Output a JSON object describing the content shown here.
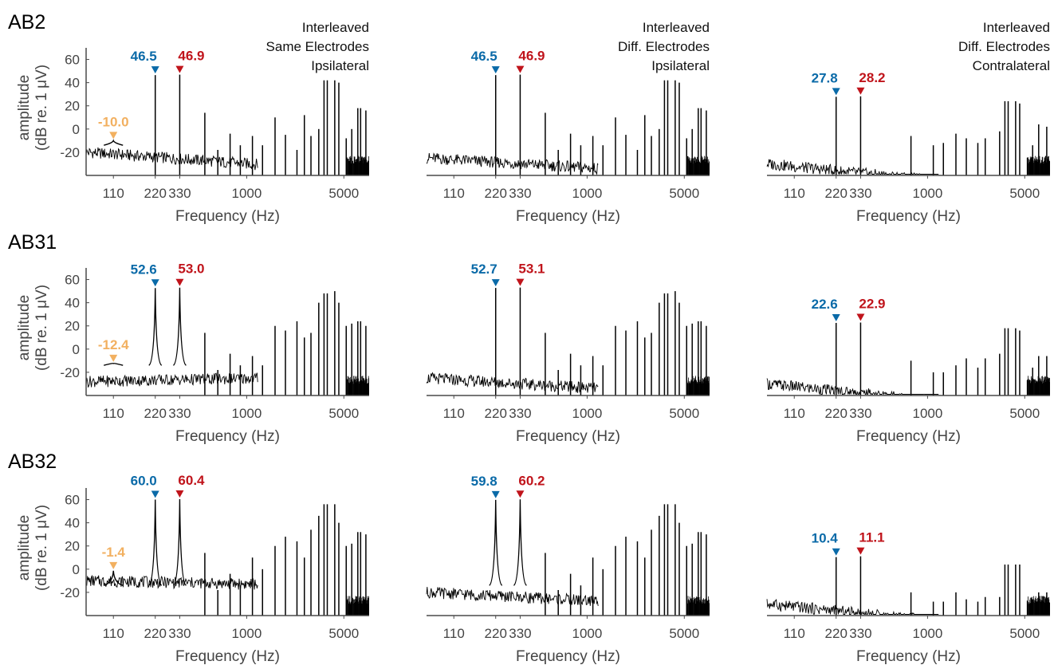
{
  "colors": {
    "blue": "#0a6aa8",
    "red": "#c0141b",
    "orange": "#f2b060",
    "trace": "#000000",
    "axis": "#4a4a4a",
    "text": "#444444"
  },
  "rows": [
    {
      "label": "AB2"
    },
    {
      "label": "AB31"
    },
    {
      "label": "AB32"
    }
  ],
  "shared": {
    "ylabel_line1": "amplitude",
    "ylabel_line2": "(dB re. 1 μV)",
    "xlabel": "Frequency (Hz)",
    "xticks": [
      110,
      220,
      330,
      1000,
      5000
    ],
    "yticks": [
      60,
      40,
      20,
      0,
      -20
    ]
  },
  "chart_data": [
    {
      "type": "line",
      "row": "AB2",
      "title": [
        "Interleaved",
        "Same Electrodes",
        "Ipsilateral"
      ],
      "xlabel": "Frequency (Hz)",
      "ylabel": "amplitude (dB re. 1 μV)",
      "xscale": "log",
      "ylim": [
        -40,
        70
      ],
      "xticks": [
        110,
        220,
        330,
        1000,
        5000
      ],
      "yticks": [
        60,
        40,
        20,
        0,
        -20
      ],
      "markers": [
        {
          "x": 110,
          "value": -10.0,
          "color": "orange"
        },
        {
          "x": 220,
          "value": 46.5,
          "color": "blue"
        },
        {
          "x": 330,
          "value": 46.9,
          "color": "red"
        }
      ],
      "peaks": [
        {
          "x": 110,
          "y": -10.0,
          "w": 3
        },
        {
          "x": 220,
          "y": 46.5,
          "w": 0
        },
        {
          "x": 330,
          "y": 46.9,
          "w": 0
        },
        {
          "x": 500,
          "y": 14
        },
        {
          "x": 620,
          "y": -18
        },
        {
          "x": 760,
          "y": -4
        },
        {
          "x": 900,
          "y": -14
        },
        {
          "x": 1100,
          "y": -6
        },
        {
          "x": 1300,
          "y": -14
        },
        {
          "x": 1600,
          "y": 10
        },
        {
          "x": 1900,
          "y": -5
        },
        {
          "x": 2300,
          "y": -18
        },
        {
          "x": 2600,
          "y": 12
        },
        {
          "x": 2900,
          "y": -6
        },
        {
          "x": 3300,
          "y": 0
        },
        {
          "x": 3600,
          "y": 42
        },
        {
          "x": 3800,
          "y": 42
        },
        {
          "x": 4300,
          "y": 42
        },
        {
          "x": 4600,
          "y": 40
        },
        {
          "x": 5200,
          "y": -8
        },
        {
          "x": 5700,
          "y": 0
        },
        {
          "x": 6300,
          "y": 18
        },
        {
          "x": 6600,
          "y": 18
        },
        {
          "x": 7200,
          "y": 16
        }
      ],
      "noise": {
        "start": -20,
        "slope": -0.35
      }
    },
    {
      "type": "line",
      "row": "AB2",
      "title": [
        "Interleaved",
        "Diff. Electrodes",
        "Ipsilateral"
      ],
      "xlabel": "Frequency (Hz)",
      "xscale": "log",
      "ylim": [
        -40,
        70
      ],
      "xticks": [
        110,
        220,
        330,
        1000,
        5000
      ],
      "markers": [
        {
          "x": 220,
          "value": 46.5,
          "color": "blue"
        },
        {
          "x": 330,
          "value": 46.9,
          "color": "red"
        }
      ],
      "peaks": [
        {
          "x": 220,
          "y": 46.5,
          "w": 0
        },
        {
          "x": 330,
          "y": 46.9,
          "w": 0
        },
        {
          "x": 500,
          "y": 14
        },
        {
          "x": 620,
          "y": -18
        },
        {
          "x": 760,
          "y": -4
        },
        {
          "x": 900,
          "y": -14
        },
        {
          "x": 1100,
          "y": -6
        },
        {
          "x": 1300,
          "y": -14
        },
        {
          "x": 1600,
          "y": 10
        },
        {
          "x": 1900,
          "y": -5
        },
        {
          "x": 2300,
          "y": -18
        },
        {
          "x": 2600,
          "y": 12
        },
        {
          "x": 2900,
          "y": -6
        },
        {
          "x": 3300,
          "y": 0
        },
        {
          "x": 3600,
          "y": 42
        },
        {
          "x": 3800,
          "y": 42
        },
        {
          "x": 4300,
          "y": 42
        },
        {
          "x": 4600,
          "y": 40
        },
        {
          "x": 5200,
          "y": -8
        },
        {
          "x": 5700,
          "y": 0
        },
        {
          "x": 6300,
          "y": 18
        },
        {
          "x": 6600,
          "y": 18
        },
        {
          "x": 7200,
          "y": 16
        }
      ],
      "noise": {
        "start": -25,
        "slope": -0.3
      }
    },
    {
      "type": "line",
      "row": "AB2",
      "title": [
        "Interleaved",
        "Diff. Electrodes",
        "Contralateral"
      ],
      "xlabel": "Frequency (Hz)",
      "xscale": "log",
      "ylim": [
        -40,
        70
      ],
      "xticks": [
        110,
        220,
        330,
        1000,
        5000
      ],
      "markers": [
        {
          "x": 220,
          "value": 27.8,
          "color": "blue"
        },
        {
          "x": 330,
          "value": 28.2,
          "color": "red"
        }
      ],
      "peaks": [
        {
          "x": 220,
          "y": 27.8,
          "w": 0
        },
        {
          "x": 330,
          "y": 28.2,
          "w": 0
        },
        {
          "x": 760,
          "y": -6
        },
        {
          "x": 1100,
          "y": -14
        },
        {
          "x": 1300,
          "y": -12
        },
        {
          "x": 1600,
          "y": -4
        },
        {
          "x": 1900,
          "y": -8
        },
        {
          "x": 2300,
          "y": -12
        },
        {
          "x": 2600,
          "y": -8
        },
        {
          "x": 3300,
          "y": -2
        },
        {
          "x": 3600,
          "y": 24
        },
        {
          "x": 3800,
          "y": 24
        },
        {
          "x": 4300,
          "y": 24
        },
        {
          "x": 4600,
          "y": 22
        },
        {
          "x": 5700,
          "y": -14
        },
        {
          "x": 6300,
          "y": 4
        },
        {
          "x": 7200,
          "y": 2
        }
      ],
      "noise": {
        "start": -30,
        "slope": -0.5
      }
    },
    {
      "type": "line",
      "row": "AB31",
      "title": [],
      "xlabel": "Frequency (Hz)",
      "ylabel": "amplitude (dB re. 1 μV)",
      "xscale": "log",
      "ylim": [
        -40,
        70
      ],
      "xticks": [
        110,
        220,
        330,
        1000,
        5000
      ],
      "yticks": [
        60,
        40,
        20,
        0,
        -20
      ],
      "markers": [
        {
          "x": 110,
          "value": -12.4,
          "color": "orange"
        },
        {
          "x": 220,
          "value": 52.6,
          "color": "blue"
        },
        {
          "x": 330,
          "value": 53.0,
          "color": "red"
        }
      ],
      "peaks": [
        {
          "x": 110,
          "y": -12.4,
          "w": 3
        },
        {
          "x": 220,
          "y": 52.6,
          "w": 2
        },
        {
          "x": 330,
          "y": 53.0,
          "w": 2
        },
        {
          "x": 500,
          "y": 14
        },
        {
          "x": 620,
          "y": -18
        },
        {
          "x": 760,
          "y": -4
        },
        {
          "x": 900,
          "y": -14
        },
        {
          "x": 1100,
          "y": -6
        },
        {
          "x": 1300,
          "y": -14
        },
        {
          "x": 1600,
          "y": 20
        },
        {
          "x": 1900,
          "y": 16
        },
        {
          "x": 2300,
          "y": 24
        },
        {
          "x": 2600,
          "y": 10
        },
        {
          "x": 2900,
          "y": 14
        },
        {
          "x": 3300,
          "y": 40
        },
        {
          "x": 3600,
          "y": 48
        },
        {
          "x": 3800,
          "y": 48
        },
        {
          "x": 4300,
          "y": 50
        },
        {
          "x": 4600,
          "y": 40
        },
        {
          "x": 5200,
          "y": 20
        },
        {
          "x": 5700,
          "y": 22
        },
        {
          "x": 6300,
          "y": 24
        },
        {
          "x": 6600,
          "y": 24
        },
        {
          "x": 7200,
          "y": 20
        }
      ],
      "noise": {
        "start": -28,
        "slope": 0.1
      }
    },
    {
      "type": "line",
      "row": "AB31",
      "title": [],
      "xlabel": "Frequency (Hz)",
      "xscale": "log",
      "ylim": [
        -40,
        70
      ],
      "xticks": [
        110,
        220,
        330,
        1000,
        5000
      ],
      "markers": [
        {
          "x": 220,
          "value": 52.7,
          "color": "blue"
        },
        {
          "x": 330,
          "value": 53.1,
          "color": "red"
        }
      ],
      "peaks": [
        {
          "x": 220,
          "y": 52.7,
          "w": 0
        },
        {
          "x": 330,
          "y": 53.1,
          "w": 0
        },
        {
          "x": 500,
          "y": 14
        },
        {
          "x": 620,
          "y": -18
        },
        {
          "x": 760,
          "y": -4
        },
        {
          "x": 900,
          "y": -14
        },
        {
          "x": 1100,
          "y": -6
        },
        {
          "x": 1300,
          "y": -14
        },
        {
          "x": 1600,
          "y": 20
        },
        {
          "x": 1900,
          "y": 16
        },
        {
          "x": 2300,
          "y": 24
        },
        {
          "x": 2600,
          "y": 10
        },
        {
          "x": 2900,
          "y": 14
        },
        {
          "x": 3300,
          "y": 40
        },
        {
          "x": 3600,
          "y": 48
        },
        {
          "x": 3800,
          "y": 48
        },
        {
          "x": 4300,
          "y": 50
        },
        {
          "x": 4600,
          "y": 40
        },
        {
          "x": 5200,
          "y": 20
        },
        {
          "x": 5700,
          "y": 22
        },
        {
          "x": 6300,
          "y": 24
        },
        {
          "x": 6600,
          "y": 24
        },
        {
          "x": 7200,
          "y": 20
        }
      ],
      "noise": {
        "start": -25,
        "slope": -0.3
      }
    },
    {
      "type": "line",
      "row": "AB31",
      "title": [],
      "xlabel": "Frequency (Hz)",
      "xscale": "log",
      "ylim": [
        -40,
        70
      ],
      "xticks": [
        110,
        220,
        330,
        1000,
        5000
      ],
      "markers": [
        {
          "x": 220,
          "value": 22.6,
          "color": "blue"
        },
        {
          "x": 330,
          "value": 22.9,
          "color": "red"
        }
      ],
      "peaks": [
        {
          "x": 220,
          "y": 22.6,
          "w": 0
        },
        {
          "x": 330,
          "y": 22.9,
          "w": 0
        },
        {
          "x": 760,
          "y": -10
        },
        {
          "x": 1100,
          "y": -20
        },
        {
          "x": 1300,
          "y": -20
        },
        {
          "x": 1600,
          "y": -14
        },
        {
          "x": 1900,
          "y": -8
        },
        {
          "x": 2300,
          "y": -16
        },
        {
          "x": 2600,
          "y": -8
        },
        {
          "x": 3300,
          "y": -4
        },
        {
          "x": 3600,
          "y": 18
        },
        {
          "x": 3800,
          "y": 18
        },
        {
          "x": 4300,
          "y": 18
        },
        {
          "x": 4600,
          "y": 16
        },
        {
          "x": 5700,
          "y": -16
        },
        {
          "x": 6300,
          "y": -6
        },
        {
          "x": 7200,
          "y": -6
        }
      ],
      "noise": {
        "start": -30,
        "slope": -0.5
      }
    },
    {
      "type": "line",
      "row": "AB32",
      "title": [],
      "xlabel": "Frequency (Hz)",
      "ylabel": "amplitude (dB re. 1 μV)",
      "xscale": "log",
      "ylim": [
        -40,
        70
      ],
      "xticks": [
        110,
        220,
        330,
        1000,
        5000
      ],
      "yticks": [
        60,
        40,
        20,
        0,
        -20
      ],
      "markers": [
        {
          "x": 110,
          "value": -1.4,
          "color": "orange"
        },
        {
          "x": 220,
          "value": 60.0,
          "color": "blue"
        },
        {
          "x": 330,
          "value": 60.4,
          "color": "red"
        }
      ],
      "peaks": [
        {
          "x": 110,
          "y": -1.4,
          "w": 3
        },
        {
          "x": 220,
          "y": 60.0,
          "w": 2
        },
        {
          "x": 330,
          "y": 60.4,
          "w": 2
        },
        {
          "x": 500,
          "y": 14
        },
        {
          "x": 620,
          "y": -18
        },
        {
          "x": 760,
          "y": -4
        },
        {
          "x": 900,
          "y": -14
        },
        {
          "x": 1100,
          "y": 10
        },
        {
          "x": 1300,
          "y": 0
        },
        {
          "x": 1600,
          "y": 20
        },
        {
          "x": 1900,
          "y": 28
        },
        {
          "x": 2300,
          "y": 24
        },
        {
          "x": 2600,
          "y": 10
        },
        {
          "x": 2900,
          "y": 34
        },
        {
          "x": 3300,
          "y": 46
        },
        {
          "x": 3600,
          "y": 56
        },
        {
          "x": 3800,
          "y": 56
        },
        {
          "x": 4300,
          "y": 56
        },
        {
          "x": 4600,
          "y": 40
        },
        {
          "x": 5200,
          "y": 20
        },
        {
          "x": 5700,
          "y": 22
        },
        {
          "x": 6300,
          "y": 32
        },
        {
          "x": 6600,
          "y": 32
        },
        {
          "x": 7200,
          "y": 30
        }
      ],
      "noise": {
        "start": -10,
        "slope": -0.1
      }
    },
    {
      "type": "line",
      "row": "AB32",
      "title": [],
      "xlabel": "Frequency (Hz)",
      "xscale": "log",
      "ylim": [
        -40,
        70
      ],
      "xticks": [
        110,
        220,
        330,
        1000,
        5000
      ],
      "markers": [
        {
          "x": 220,
          "value": 59.8,
          "color": "blue"
        },
        {
          "x": 330,
          "value": 60.2,
          "color": "red"
        }
      ],
      "peaks": [
        {
          "x": 220,
          "y": 59.8,
          "w": 2
        },
        {
          "x": 330,
          "y": 60.2,
          "w": 2
        },
        {
          "x": 500,
          "y": 14
        },
        {
          "x": 620,
          "y": -18
        },
        {
          "x": 760,
          "y": -4
        },
        {
          "x": 900,
          "y": -14
        },
        {
          "x": 1100,
          "y": 10
        },
        {
          "x": 1300,
          "y": 0
        },
        {
          "x": 1600,
          "y": 20
        },
        {
          "x": 1900,
          "y": 28
        },
        {
          "x": 2300,
          "y": 24
        },
        {
          "x": 2600,
          "y": 10
        },
        {
          "x": 2900,
          "y": 34
        },
        {
          "x": 3300,
          "y": 46
        },
        {
          "x": 3600,
          "y": 56
        },
        {
          "x": 3800,
          "y": 56
        },
        {
          "x": 4300,
          "y": 56
        },
        {
          "x": 4600,
          "y": 40
        },
        {
          "x": 5200,
          "y": 20
        },
        {
          "x": 5700,
          "y": 22
        },
        {
          "x": 6300,
          "y": 32
        },
        {
          "x": 6600,
          "y": 32
        },
        {
          "x": 7200,
          "y": 30
        }
      ],
      "noise": {
        "start": -20,
        "slope": -0.25
      }
    },
    {
      "type": "line",
      "row": "AB32",
      "title": [],
      "xlabel": "Frequency (Hz)",
      "xscale": "log",
      "ylim": [
        -40,
        70
      ],
      "xticks": [
        110,
        220,
        330,
        1000,
        5000
      ],
      "markers": [
        {
          "x": 220,
          "value": 10.4,
          "color": "blue"
        },
        {
          "x": 330,
          "value": 11.1,
          "color": "red"
        }
      ],
      "peaks": [
        {
          "x": 220,
          "y": 10.4,
          "w": 0
        },
        {
          "x": 330,
          "y": 11.1,
          "w": 0
        },
        {
          "x": 760,
          "y": -20
        },
        {
          "x": 1100,
          "y": -28
        },
        {
          "x": 1300,
          "y": -28
        },
        {
          "x": 1600,
          "y": -20
        },
        {
          "x": 1900,
          "y": -26
        },
        {
          "x": 2300,
          "y": -28
        },
        {
          "x": 2600,
          "y": -24
        },
        {
          "x": 3300,
          "y": -24
        },
        {
          "x": 3600,
          "y": 4
        },
        {
          "x": 3800,
          "y": 4
        },
        {
          "x": 4300,
          "y": 4
        },
        {
          "x": 4600,
          "y": 4
        },
        {
          "x": 5700,
          "y": -26
        },
        {
          "x": 6300,
          "y": -20
        },
        {
          "x": 7200,
          "y": -20
        }
      ],
      "noise": {
        "start": -30,
        "slope": -0.5
      }
    }
  ]
}
